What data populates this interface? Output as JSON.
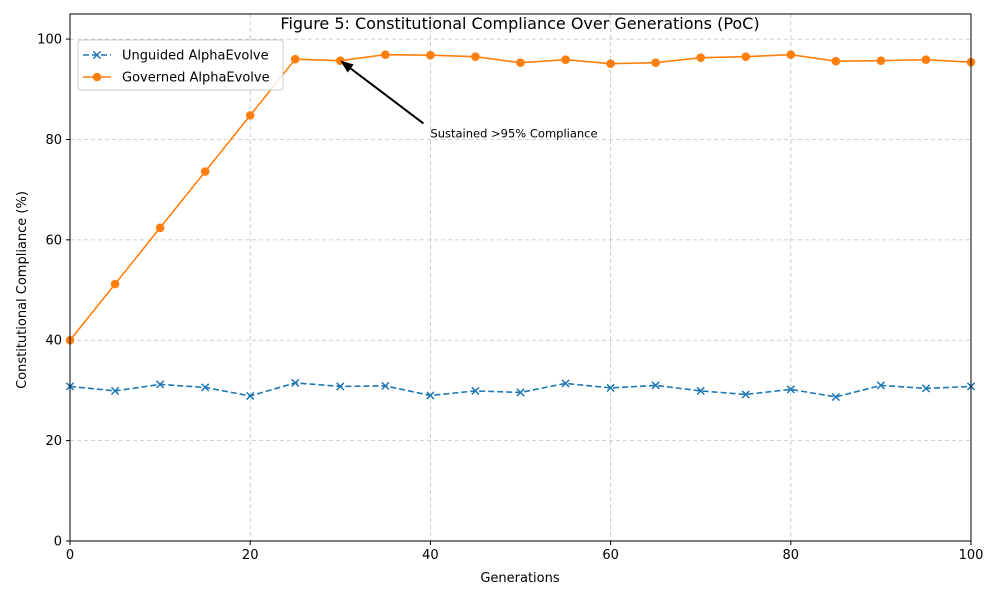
{
  "chart_data": {
    "type": "line",
    "title": "Figure 5: Constitutional Compliance Over Generations (PoC)",
    "xlabel": "Generations",
    "ylabel": "Constitutional Compliance (%)",
    "xlim": [
      0,
      100
    ],
    "ylim": [
      0,
      105
    ],
    "xticks": [
      0,
      20,
      40,
      60,
      80,
      100
    ],
    "yticks": [
      0,
      20,
      40,
      60,
      80,
      100
    ],
    "grid": true,
    "legend_position": "top-left",
    "x": [
      0,
      5,
      10,
      15,
      20,
      25,
      30,
      35,
      40,
      45,
      50,
      55,
      60,
      65,
      70,
      75,
      80,
      85,
      90,
      95,
      100
    ],
    "series": [
      {
        "name": "Unguided AlphaEvolve",
        "color": "#1f77b4",
        "linestyle": "dashed",
        "marker": "x",
        "values": [
          30.8,
          29.9,
          31.2,
          30.6,
          28.9,
          31.5,
          30.8,
          30.9,
          29.0,
          29.9,
          29.6,
          31.4,
          30.5,
          31.0,
          29.9,
          29.2,
          30.2,
          28.7,
          31.0,
          30.4,
          30.8
        ]
      },
      {
        "name": "Governed AlphaEvolve",
        "color": "#ff7f0e",
        "linestyle": "solid",
        "marker": "circle",
        "values": [
          40.0,
          51.2,
          62.4,
          73.6,
          84.8,
          96.0,
          95.7,
          96.9,
          96.8,
          96.5,
          95.3,
          95.9,
          95.1,
          95.3,
          96.3,
          96.5,
          96.9,
          95.6,
          95.7,
          95.9,
          95.4
        ]
      }
    ],
    "annotation": {
      "text": "Sustained >95% Compliance",
      "point": [
        30,
        95.7
      ],
      "text_at": [
        40,
        81
      ]
    }
  }
}
